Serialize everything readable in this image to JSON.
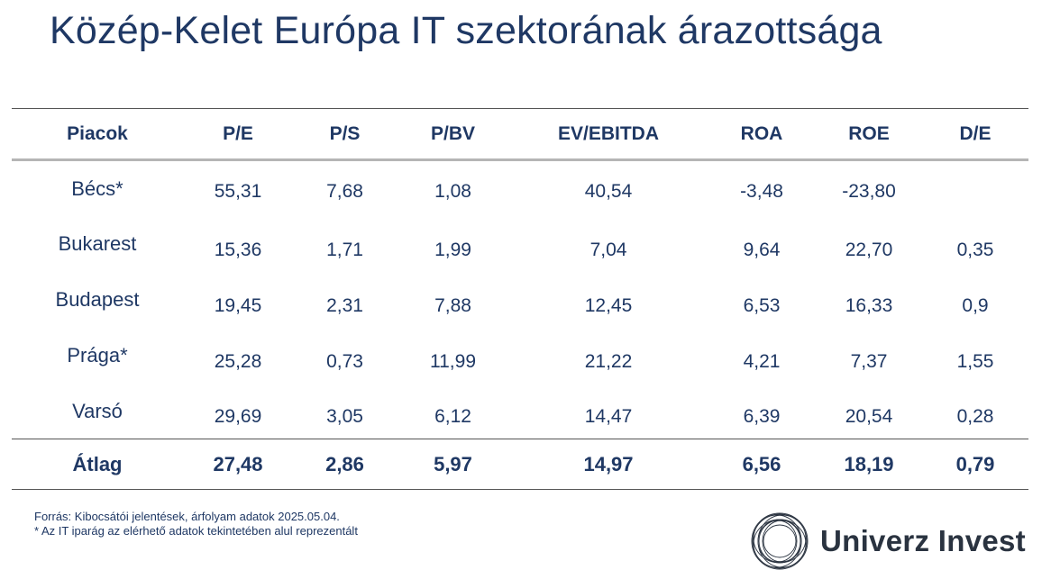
{
  "title": "Közép-Kelet Európa IT szektorának árazottsága",
  "table": {
    "headers": [
      "Piacok",
      "P/E",
      "P/S",
      "P/BV",
      "EV/EBITDA",
      "ROA",
      "ROE",
      "D/E"
    ],
    "rows": [
      [
        "Bécs*",
        "55,31",
        "7,68",
        "1,08",
        "40,54",
        "-3,48",
        "-23,80",
        ""
      ],
      [
        "Bukarest",
        "15,36",
        "1,71",
        "1,99",
        "7,04",
        "9,64",
        "22,70",
        "0,35"
      ],
      [
        "Budapest",
        "19,45",
        "2,31",
        "7,88",
        "12,45",
        "6,53",
        "16,33",
        "0,9"
      ],
      [
        "Prága*",
        "25,28",
        "0,73",
        "11,99",
        "21,22",
        "4,21",
        "7,37",
        "1,55"
      ],
      [
        "Varsó",
        "29,69",
        "3,05",
        "6,12",
        "14,47",
        "6,39",
        "20,54",
        "0,28"
      ]
    ],
    "footer": [
      "Átlag",
      "27,48",
      "2,86",
      "5,97",
      "14,97",
      "6,56",
      "18,19",
      "0,79"
    ]
  },
  "notes": {
    "source": "Forrás: Kibocsátói jelentések, árfolyam adatok 2025.05.04.",
    "footnote": "* Az IT iparág az elérhető adatok tekintetében alul reprezentált"
  },
  "logo": {
    "text": "Univerz Invest",
    "icon": "concentric-circles-logo-icon"
  },
  "colors": {
    "title": "#1f3864",
    "text": "#1f3864",
    "header_rule": "#b5b5b5",
    "rule": "#555555",
    "logo_text": "#2a3340"
  }
}
